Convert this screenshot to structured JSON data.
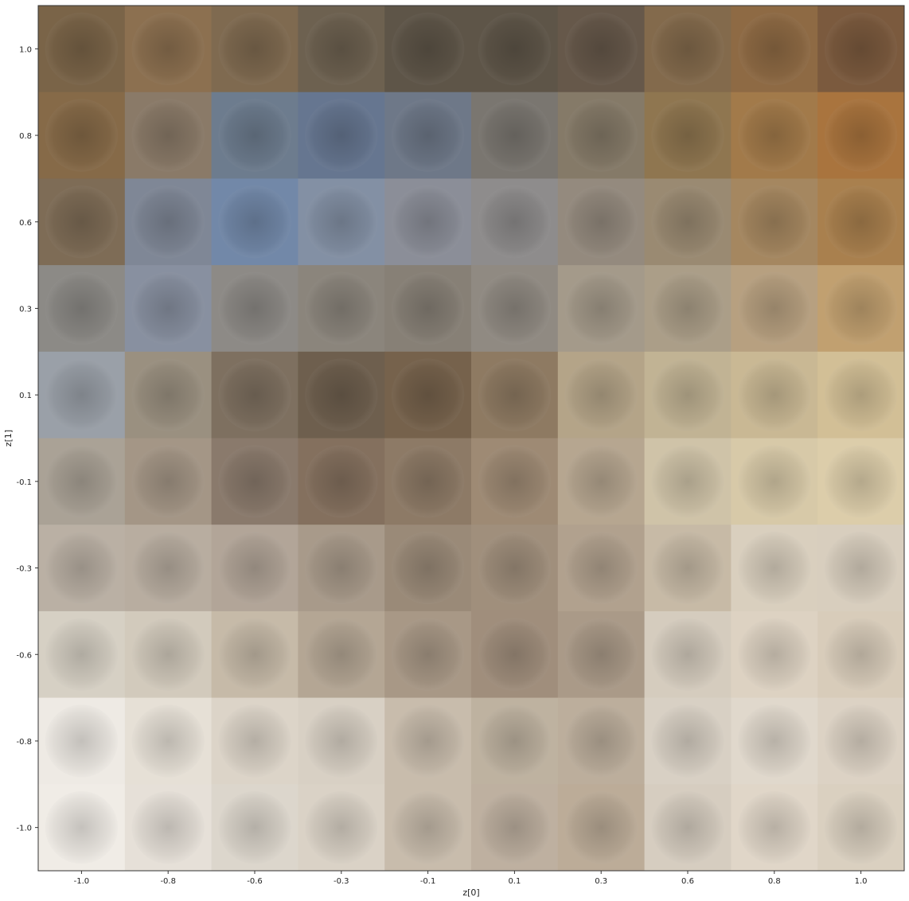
{
  "chart_data": {
    "type": "heatmap",
    "title": "",
    "xlabel": "z[0]",
    "ylabel": "z[1]",
    "x_ticks": [
      "-1.0",
      "-0.8",
      "-0.6",
      "-0.3",
      "-0.1",
      "0.1",
      "0.3",
      "0.6",
      "0.8",
      "1.0"
    ],
    "y_ticks": [
      "1.0",
      "0.8",
      "0.6",
      "0.3",
      "0.1",
      "-0.1",
      "-0.3",
      "-0.6",
      "-0.8",
      "-1.0"
    ],
    "grid": false,
    "description_of_cells": [
      [
        "#7a6448",
        "#8c7050",
        "#7f6a50",
        "#6d6150",
        "#5e5548",
        "#5e5548",
        "#66584a",
        "#836a4c",
        "#8e6a44",
        "#7b5a3e"
      ],
      [
        "#866a48",
        "#8a7a68",
        "#6d7c8e",
        "#667690",
        "#6e7888",
        "#7a7670",
        "#857a68",
        "#8f7650",
        "#a27a4a",
        "#a9743e"
      ],
      [
        "#7e6c56",
        "#7f8796",
        "#7288a8",
        "#8390a4",
        "#8b8e98",
        "#8e8c8c",
        "#948a7e",
        "#9a8a72",
        "#a58760",
        "#a9804e"
      ],
      [
        "#8c8a86",
        "#8890a0",
        "#8d8a86",
        "#8b857c",
        "#878076",
        "#908a82",
        "#a49a8a",
        "#ab9e88",
        "#b7a080",
        "#c1a070"
      ],
      [
        "#9aa0a8",
        "#9a9080",
        "#7e7060",
        "#6e5f4e",
        "#76624c",
        "#8e7a62",
        "#b4a488",
        "#c1b394",
        "#c9b894",
        "#d2bf96"
      ],
      [
        "#aaa296",
        "#a49686",
        "#8a7a6c",
        "#84705e",
        "#8d7a66",
        "#9e8a74",
        "#b6a690",
        "#cfc3a8",
        "#d7c9a8",
        "#dccdaa"
      ],
      [
        "#bab0a4",
        "#b8ada0",
        "#b2a598",
        "#a89a8a",
        "#9a8a78",
        "#a08f7c",
        "#b1a18e",
        "#c7baa6",
        "#d9cfbe",
        "#d8cebe"
      ],
      [
        "#d6d0c4",
        "#d2cabc",
        "#c6baa8",
        "#b4a694",
        "#a89886",
        "#a08e7c",
        "#aa9a88",
        "#d5ccbe",
        "#ddd2c2",
        "#d8ccba"
      ],
      [
        "#eeeae4",
        "#e6e0d6",
        "#dcd4c8",
        "#d8d0c4",
        "#c8bcac",
        "#beb2a0",
        "#bcae9c",
        "#d8d0c4",
        "#e0d8cc",
        "#dcd2c4"
      ],
      [
        "#f0ece6",
        "#e6e0d8",
        "#dcd6cc",
        "#dad2c6",
        "#c8bcac",
        "#beb0a0",
        "#bcac98",
        "#d6cdc0",
        "#e0d6c8",
        "#dad0c0"
      ]
    ]
  }
}
